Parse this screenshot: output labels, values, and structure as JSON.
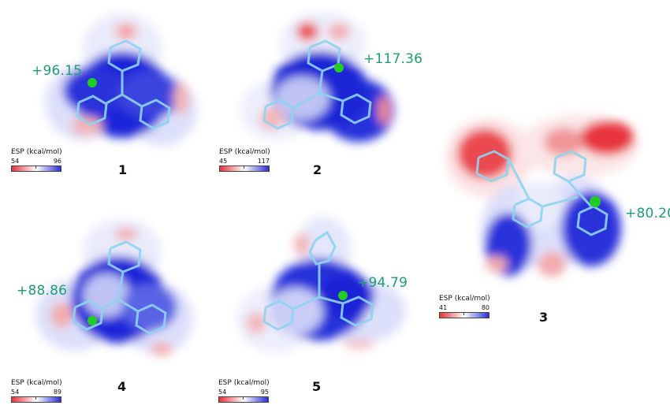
{
  "panels": [
    {
      "id": "1",
      "esp_value": "+96.15",
      "legend_title": "ESP (kcal/mol)",
      "legend_min": "54",
      "legend_max": "96"
    },
    {
      "id": "2",
      "esp_value": "+117.36",
      "legend_title": "ESP (kcal/mol)",
      "legend_min": "45",
      "legend_max": "117"
    },
    {
      "id": "3",
      "esp_value": "+80.20",
      "legend_title": "ESP (kcal/mol)",
      "legend_min": "41",
      "legend_max": "80"
    },
    {
      "id": "4",
      "esp_value": "+88.86",
      "legend_title": "ESP (kcal/mol)",
      "legend_min": "54",
      "legend_max": "89"
    },
    {
      "id": "5",
      "esp_value": "+94.79",
      "legend_title": "ESP (kcal/mol)",
      "legend_min": "54",
      "legend_max": "95"
    }
  ],
  "colors": {
    "esp_negative": "#e8323a",
    "esp_neutral": "#ffffff",
    "esp_positive": "#2a2fd8",
    "value_label": "#1f9e72",
    "sigma_hole": "#22cc22",
    "atom": "#8fd3f0"
  }
}
